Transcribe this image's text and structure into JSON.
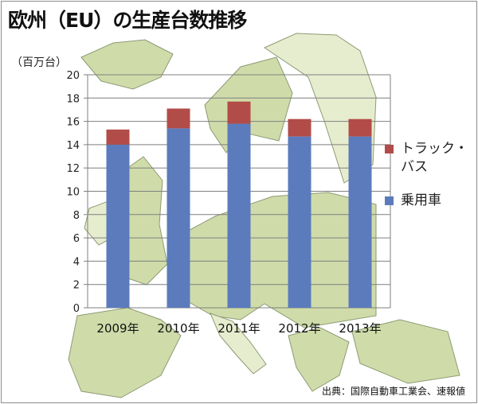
{
  "title": "欧州（EU）の生産台数推移",
  "source": "出典：国際自動車工業会、速報値",
  "colors": {
    "passenger": "#5b7bbd",
    "truck_bus": "#b24c48",
    "map_land": "#cfdcaa",
    "map_land_light": "#e6edcf",
    "map_sea": "#ffffff",
    "map_border": "#8e9a74"
  },
  "chart_data": {
    "type": "bar",
    "stacked": true,
    "title": "欧州（EU）の生産台数推移",
    "ylabel": "（百万台）",
    "ylim": [
      0,
      20
    ],
    "yticks": [
      0,
      2,
      4,
      6,
      8,
      10,
      12,
      14,
      16,
      18,
      20
    ],
    "ytick_labels": [
      "0",
      "2",
      "4",
      "6",
      "8",
      "10",
      "12",
      "14",
      "16",
      "18",
      "20"
    ],
    "grid": true,
    "legend_position": "right",
    "categories": [
      "2009年",
      "2010年",
      "2011年",
      "2012年",
      "2013年"
    ],
    "series": [
      {
        "name": "乗用車",
        "color": "#5b7bbd",
        "values": [
          14.0,
          15.4,
          15.8,
          14.7,
          14.7
        ]
      },
      {
        "name": "トラック・バス",
        "color": "#b24c48",
        "values": [
          1.3,
          1.7,
          1.9,
          1.5,
          1.5
        ]
      }
    ]
  }
}
